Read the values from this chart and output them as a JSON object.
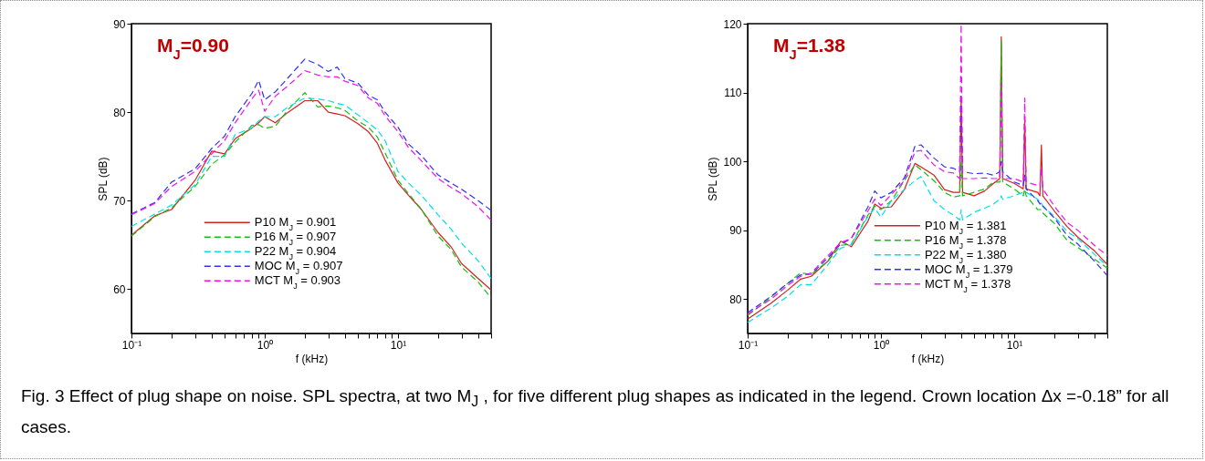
{
  "chart_data": [
    {
      "type": "line",
      "title": "M$_{J}$=0.90",
      "xlabel": "f (kHz)",
      "ylabel": "SPL (dB)",
      "log": "x",
      "legend": "bottom",
      "annotations": [
        "Fig. 3 Effect of plug shape on noise. SPL spectra, at two M$_{J}$ , for five different plug shapes as indicated in the legend. Crown location Δx =-0.18” for all cases."
      ],
      "xlim": [
        0.1,
        50
      ],
      "ylim": [
        55,
        90
      ],
      "xticks": [
        {
          "value": 0.1,
          "label": "10⁻¹"
        },
        {
          "value": 0.2,
          "label": null
        },
        {
          "value": 0.3,
          "label": null
        },
        {
          "value": 0.4,
          "label": null
        },
        {
          "value": 0.5,
          "label": null
        },
        {
          "value": 0.6,
          "label": null
        },
        {
          "value": 0.7,
          "label": null
        },
        {
          "value": 0.8,
          "label": null
        },
        {
          "value": 0.9,
          "label": null
        },
        {
          "value": 1,
          "label": "10⁰"
        },
        {
          "value": 2,
          "label": null
        },
        {
          "value": 3,
          "label": null
        },
        {
          "value": 4,
          "label": null
        },
        {
          "value": 5,
          "label": null
        },
        {
          "value": 6,
          "label": null
        },
        {
          "value": 7,
          "label": null
        },
        {
          "value": 8,
          "label": null
        },
        {
          "value": 9,
          "label": null
        },
        {
          "value": 10,
          "label": "10¹"
        },
        {
          "value": 20,
          "label": null
        },
        {
          "value": 30,
          "label": null
        },
        {
          "value": 40,
          "label": null
        },
        {
          "value": 50,
          "label": null
        }
      ],
      "yticks": [
        60,
        70,
        80,
        90
      ],
      "x": [
        0.1,
        0.15,
        0.2,
        0.3,
        0.4,
        0.5,
        0.6,
        0.8,
        0.9,
        1,
        1.2,
        1.5,
        2,
        2.5,
        3,
        3.5,
        4,
        5,
        6,
        7,
        8,
        10,
        12,
        15,
        20,
        25,
        30,
        40,
        50
      ],
      "series": [
        {
          "name": "P10  M$_{J}$ = 0.901",
          "color": "#d42020",
          "line_style": "solid",
          "values": [
            66.1,
            68.3,
            69.0,
            72.3,
            75.6,
            75.3,
            77.0,
            78.2,
            78.8,
            79.5,
            78.8,
            80.0,
            81.3,
            81.3,
            80.0,
            79.8,
            79.6,
            78.7,
            77.8,
            76.5,
            74.6,
            72.0,
            70.6,
            69.0,
            66.4,
            64.8,
            62.9,
            61.2,
            59.9
          ]
        },
        {
          "name": "P16  M$_{J}$ = 0.907",
          "color": "#10c010",
          "line_style": "dashed",
          "values": [
            66.0,
            68.2,
            69.2,
            71.6,
            74.1,
            75.2,
            76.6,
            78.5,
            78.6,
            78.2,
            78.4,
            80.3,
            82.2,
            80.6,
            80.7,
            80.5,
            80.2,
            79.0,
            78.3,
            77.2,
            75.4,
            72.3,
            70.8,
            69.0,
            66.0,
            64.5,
            62.5,
            60.8,
            59.0
          ]
        },
        {
          "name": "P22  M$_{J}$ = 0.904",
          "color": "#00e0e8",
          "line_style": "dashed",
          "values": [
            67.1,
            68.5,
            69.5,
            71.8,
            75.0,
            75.0,
            77.5,
            78.2,
            79.0,
            79.5,
            79.5,
            80.6,
            81.6,
            81.5,
            81.3,
            81.0,
            80.8,
            79.7,
            78.8,
            78.0,
            76.8,
            73.3,
            72.0,
            70.6,
            68.4,
            66.8,
            65.2,
            63.2,
            61.2
          ]
        },
        {
          "name": "MOC  M$_{J}$ = 0.907",
          "color": "#3030f0",
          "line_style": "dashed",
          "values": [
            68.5,
            69.8,
            72.1,
            73.6,
            75.9,
            77.3,
            79.5,
            82.1,
            83.6,
            81.4,
            82.3,
            83.9,
            86.0,
            85.4,
            84.6,
            85.1,
            83.8,
            83.3,
            81.9,
            81.4,
            80.0,
            78.3,
            76.4,
            75.1,
            72.9,
            72.0,
            71.3,
            70.0,
            68.9
          ]
        },
        {
          "name": "MCT  M$_{J}$ = 0.903",
          "color": "#f010f0",
          "line_style": "dashed",
          "values": [
            68.4,
            69.7,
            71.6,
            73.3,
            75.3,
            76.8,
            78.8,
            81.5,
            82.5,
            80.1,
            81.8,
            83.0,
            84.7,
            84.2,
            84.0,
            84.0,
            83.5,
            83.0,
            81.6,
            81.0,
            79.6,
            77.8,
            76.0,
            74.5,
            72.5,
            71.5,
            70.8,
            69.3,
            67.8
          ]
        }
      ]
    },
    {
      "type": "line",
      "title": "M$_{J}$=1.38",
      "xlabel": "f (kHz)",
      "ylabel": "SPL (dB)",
      "log": "x",
      "legend": "bottom right",
      "xlim": [
        0.1,
        50
      ],
      "ylim": [
        75,
        120
      ],
      "xticks": [
        {
          "value": 0.1,
          "label": "10⁻¹"
        },
        {
          "value": 0.2,
          "label": null
        },
        {
          "value": 0.3,
          "label": null
        },
        {
          "value": 0.4,
          "label": null
        },
        {
          "value": 0.5,
          "label": null
        },
        {
          "value": 0.6,
          "label": null
        },
        {
          "value": 0.7,
          "label": null
        },
        {
          "value": 0.8,
          "label": null
        },
        {
          "value": 0.9,
          "label": null
        },
        {
          "value": 1,
          "label": "10⁰"
        },
        {
          "value": 2,
          "label": null
        },
        {
          "value": 3,
          "label": null
        },
        {
          "value": 4,
          "label": null
        },
        {
          "value": 5,
          "label": null
        },
        {
          "value": 6,
          "label": null
        },
        {
          "value": 7,
          "label": null
        },
        {
          "value": 8,
          "label": null
        },
        {
          "value": 9,
          "label": null
        },
        {
          "value": 10,
          "label": "10¹"
        },
        {
          "value": 20,
          "label": null
        },
        {
          "value": 30,
          "label": null
        },
        {
          "value": 40,
          "label": null
        },
        {
          "value": 50,
          "label": null
        }
      ],
      "yticks": [
        80,
        90,
        100,
        110,
        120
      ],
      "x": [
        0.1,
        0.15,
        0.2,
        0.25,
        0.3,
        0.4,
        0.5,
        0.6,
        0.8,
        0.9,
        1,
        1.2,
        1.5,
        1.8,
        2,
        2.5,
        3,
        3.5,
        3.9,
        4,
        4.1,
        5,
        6,
        7,
        7.8,
        8,
        8.2,
        10,
        11.7,
        12,
        12.3,
        15,
        15.6,
        16,
        16.4,
        20,
        25,
        30,
        40,
        50
      ],
      "series": [
        {
          "name": "P10  M$_{J}$ = 1.381",
          "color": "#d42020",
          "line_style": "solid",
          "values": [
            77.1,
            79.4,
            81.3,
            82.9,
            83.3,
            85.5,
            88.4,
            87.6,
            91.3,
            93.8,
            93.2,
            93.4,
            95.9,
            99.7,
            99.2,
            98.0,
            95.9,
            95.5,
            95.5,
            108.9,
            95.5,
            95.0,
            95.7,
            96.8,
            97.5,
            118.1,
            97.5,
            96.8,
            96.0,
            106.0,
            96.0,
            95.5,
            95.0,
            102.4,
            95.0,
            92.8,
            90.5,
            89.0,
            87.0,
            85.0
          ]
        },
        {
          "name": "P16  M$_{J}$ = 1.378",
          "color": "#10c010",
          "line_style": "dashed",
          "values": [
            77.6,
            80.3,
            82.3,
            83.8,
            83.6,
            85.5,
            87.8,
            88.0,
            92.2,
            93.5,
            93.0,
            94.3,
            97.2,
            99.5,
            98.8,
            97.2,
            95.5,
            94.8,
            95.0,
            100.0,
            95.0,
            95.5,
            96.0,
            97.0,
            97.0,
            117.5,
            97.0,
            96.0,
            95.0,
            96.0,
            95.0,
            93.0,
            93.0,
            93.0,
            92.5,
            91.0,
            88.5,
            87.5,
            85.8,
            84.5
          ]
        },
        {
          "name": "P22  M$_{J}$ = 1.380",
          "color": "#00e0e8",
          "line_style": "dashed",
          "values": [
            76.6,
            78.7,
            80.4,
            82.1,
            82.1,
            85.0,
            87.4,
            87.9,
            92.0,
            93.2,
            91.9,
            94.3,
            95.9,
            97.2,
            97.8,
            94.3,
            93.0,
            92.2,
            91.5,
            93.0,
            91.5,
            92.6,
            93.2,
            93.8,
            94.5,
            95.0,
            94.5,
            95.0,
            95.5,
            95.5,
            95.5,
            94.5,
            94.0,
            94.0,
            93.5,
            92.0,
            89.8,
            88.8,
            86.5,
            84.8
          ]
        },
        {
          "name": "MOC  M$_{J}$ = 1.379",
          "color": "#3030f0",
          "line_style": "dashed",
          "values": [
            78.0,
            80.4,
            82.3,
            83.5,
            83.6,
            86.0,
            88.0,
            88.8,
            93.4,
            95.7,
            94.7,
            95.5,
            97.6,
            102.2,
            102.4,
            100.5,
            99.2,
            99.0,
            98.5,
            109.8,
            98.5,
            98.2,
            98.3,
            98.0,
            98.5,
            100.0,
            98.5,
            97.0,
            96.5,
            98.0,
            96.0,
            94.3,
            93.8,
            94.0,
            93.5,
            91.8,
            89.2,
            88.0,
            85.5,
            83.4
          ]
        },
        {
          "name": "MCT  M$_{J}$ = 1.378",
          "color": "#f010f0",
          "line_style": "dashed",
          "values": [
            77.8,
            80.0,
            82.0,
            83.3,
            83.8,
            86.3,
            88.2,
            88.8,
            92.8,
            94.5,
            93.6,
            95.2,
            97.2,
            101.4,
            101.6,
            99.5,
            98.5,
            98.3,
            97.5,
            119.9,
            97.5,
            97.5,
            97.6,
            97.5,
            97.5,
            111.2,
            97.5,
            97.5,
            97.0,
            109.2,
            97.0,
            96.5,
            96.5,
            99.0,
            96.0,
            93.5,
            91.1,
            90.0,
            87.8,
            86.3
          ]
        }
      ]
    }
  ]
}
